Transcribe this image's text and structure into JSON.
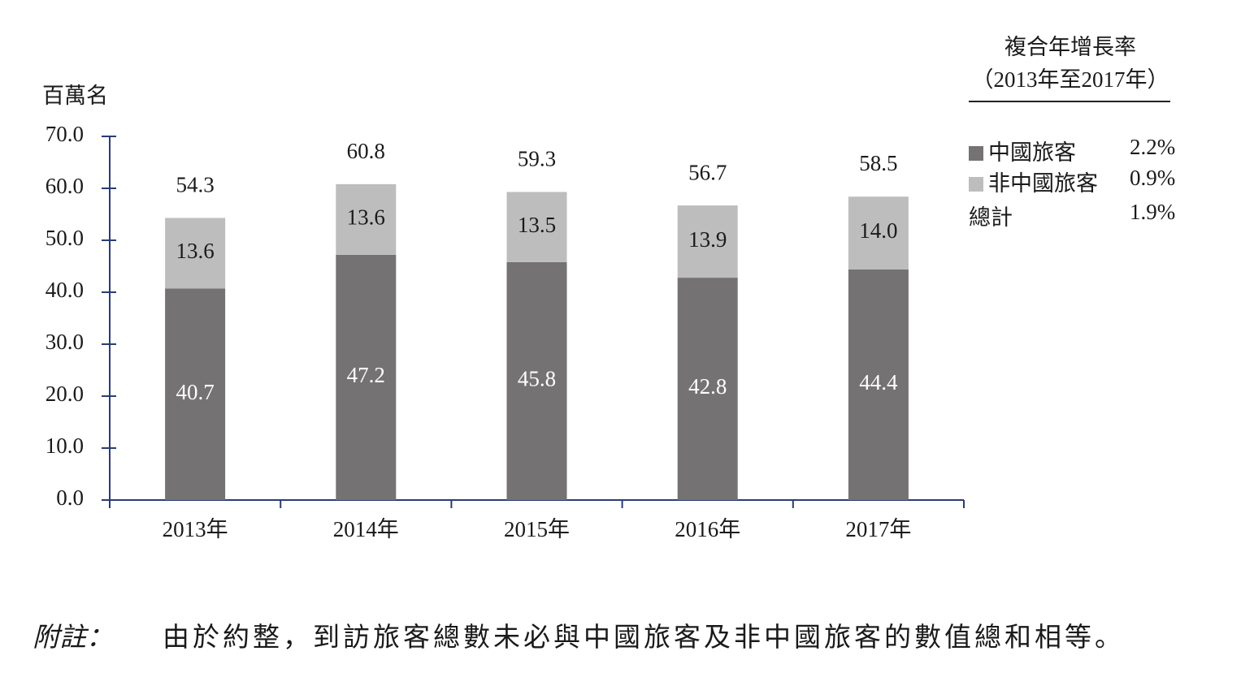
{
  "chart_data": {
    "type": "bar",
    "stacked": true,
    "ylabel": "百萬名",
    "ylim": [
      0,
      70
    ],
    "yticks": [
      "0.0",
      "10.0",
      "20.0",
      "30.0",
      "40.0",
      "50.0",
      "60.0",
      "70.0"
    ],
    "categories": [
      "2013年",
      "2014年",
      "2015年",
      "2016年",
      "2017年"
    ],
    "series": [
      {
        "name": "中國旅客",
        "values": [
          40.7,
          47.2,
          45.8,
          42.8,
          44.4
        ],
        "color": "#757273"
      },
      {
        "name": "非中國旅客",
        "values": [
          13.6,
          13.6,
          13.5,
          13.9,
          14.0
        ],
        "color": "#bdbdbd"
      }
    ],
    "totals": [
      54.3,
      60.8,
      59.3,
      56.7,
      58.5
    ],
    "axis_color": "#2b3c73"
  },
  "legend": {
    "title_line1": "複合年增長率",
    "title_line2": "（2013年至2017年）",
    "rows": [
      {
        "label": "中國旅客",
        "value": "2.2%",
        "color": "#757273"
      },
      {
        "label": "非中國旅客",
        "value": "0.9%",
        "color": "#bdbdbd"
      },
      {
        "label": "總計",
        "value": "1.9%"
      }
    ]
  },
  "note": {
    "label": "附註：",
    "text": "由於約整，到訪旅客總數未必與中國旅客及非中國旅客的數值總和相等。"
  }
}
